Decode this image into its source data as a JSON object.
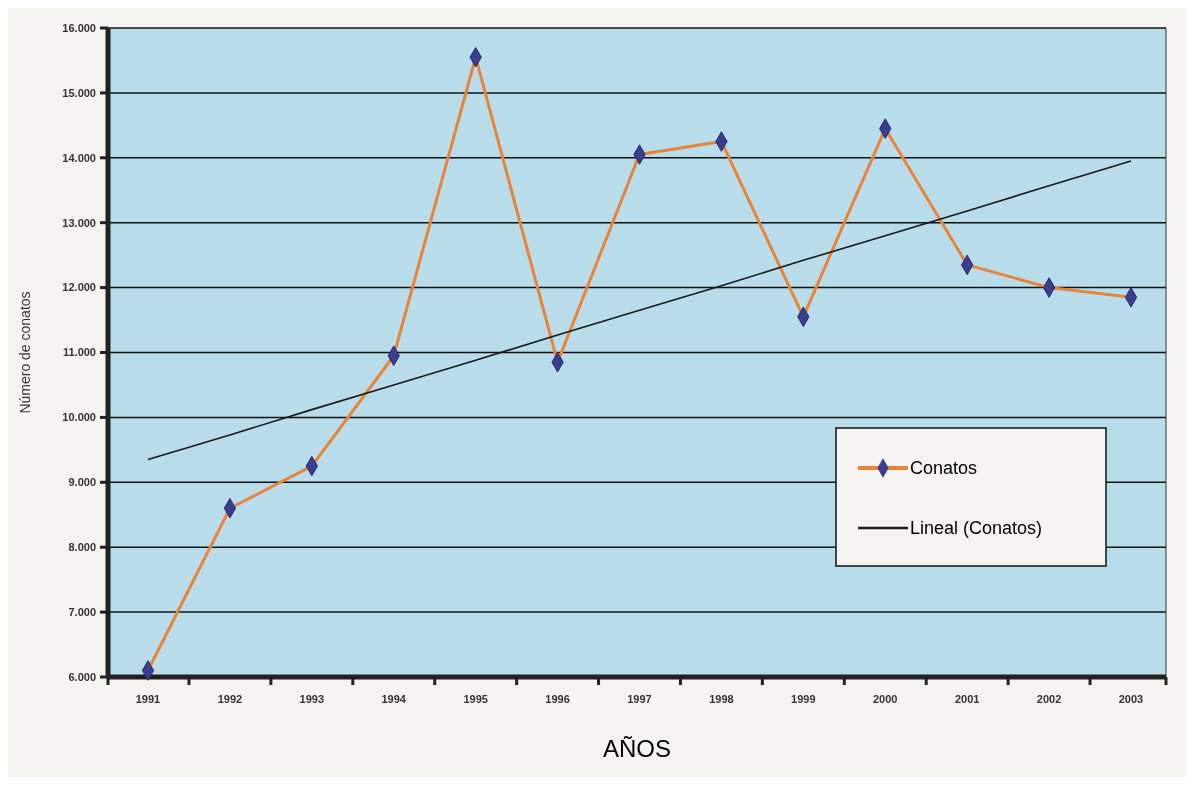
{
  "chart_data": {
    "type": "line",
    "xlabel": "AÑOS",
    "ylabel": "Número de conatos",
    "categories": [
      "1991",
      "1992",
      "1993",
      "1994",
      "1995",
      "1996",
      "1997",
      "1998",
      "1999",
      "2000",
      "2001",
      "2002",
      "2003"
    ],
    "series": [
      {
        "name": "Conatos",
        "color": "#e8843a",
        "marker": "diamond",
        "values": [
          6100,
          8600,
          9250,
          10950,
          15550,
          10850,
          14050,
          14250,
          11550,
          14450,
          12350,
          12000,
          11850
        ]
      },
      {
        "name": "Lineal (Conatos)",
        "color": "#1a1a1a",
        "marker": "none",
        "values": [
          9350,
          9730,
          10120,
          10500,
          10880,
          11270,
          11650,
          12030,
          12420,
          12800,
          13180,
          13570,
          13950
        ]
      }
    ],
    "ylim": [
      6000,
      16000
    ],
    "yticks": [
      {
        "value": 6000,
        "label": "6.000"
      },
      {
        "value": 7000,
        "label": "7.000"
      },
      {
        "value": 8000,
        "label": "8.000"
      },
      {
        "value": 9000,
        "label": "9.000"
      },
      {
        "value": 10000,
        "label": "10.000"
      },
      {
        "value": 11000,
        "label": "11.000"
      },
      {
        "value": 12000,
        "label": "12.000"
      },
      {
        "value": 13000,
        "label": "13.000"
      },
      {
        "value": 14000,
        "label": "14.000"
      },
      {
        "value": 15000,
        "label": "15.000"
      },
      {
        "value": 16000,
        "label": "16.000"
      }
    ],
    "grid": "y",
    "legend": "right"
  }
}
